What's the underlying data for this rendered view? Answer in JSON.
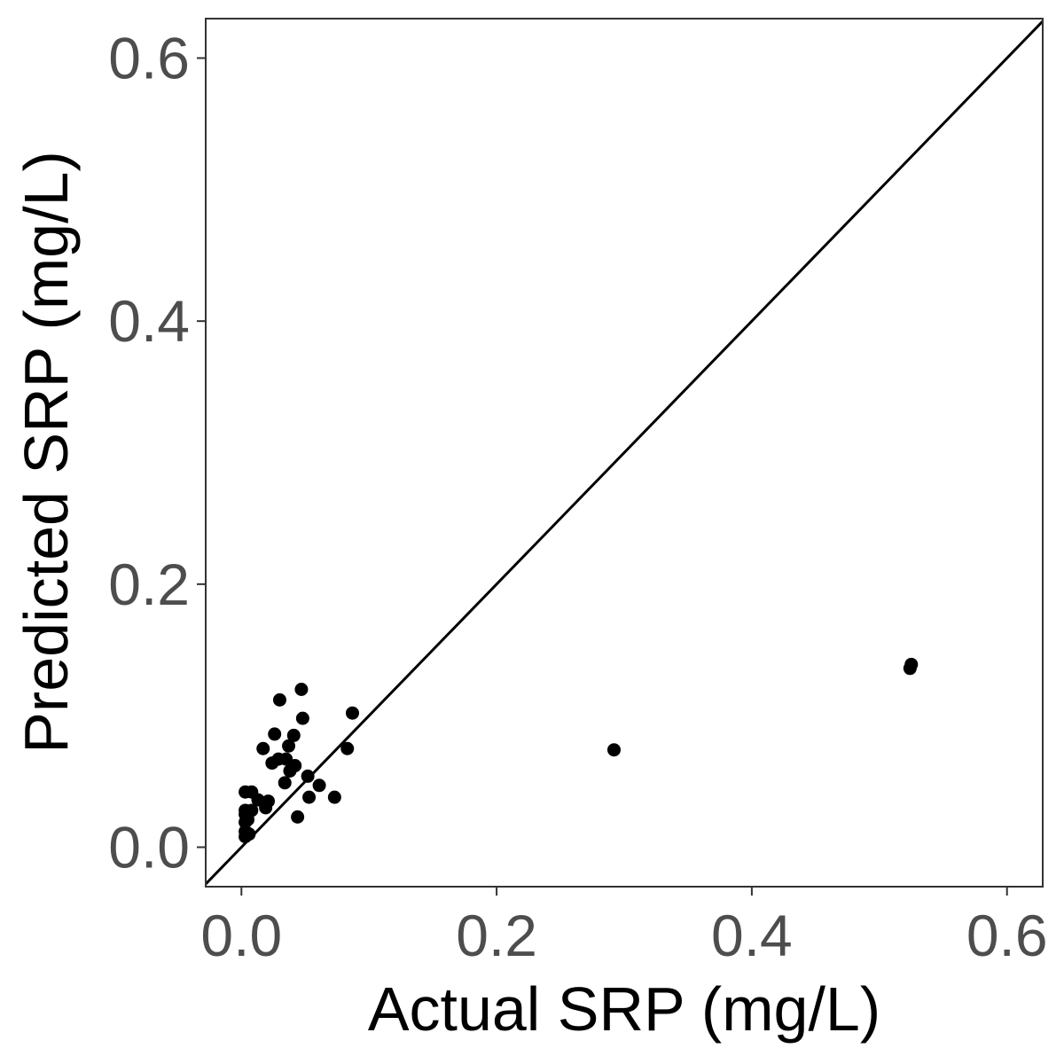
{
  "chart_data": {
    "type": "scatter",
    "title": "",
    "xlabel": "Actual SRP (mg/L)",
    "ylabel": "Predicted SRP (mg/L)",
    "xlim": [
      -0.028,
      0.628
    ],
    "ylim": [
      -0.03,
      0.63
    ],
    "xticks": [
      0.0,
      0.2,
      0.4,
      0.6
    ],
    "yticks": [
      0.0,
      0.2,
      0.4,
      0.6
    ],
    "xtick_labels": [
      "0.0",
      "0.2",
      "0.4",
      "0.6"
    ],
    "ytick_labels": [
      "0.0",
      "0.2",
      "0.4",
      "0.6"
    ],
    "grid": false,
    "reference_line": {
      "type": "identity",
      "slope": 1,
      "intercept": 0,
      "color": "#000000"
    },
    "point_color": "#000000",
    "points": [
      {
        "x": 0.003,
        "y": 0.042
      },
      {
        "x": 0.003,
        "y": 0.028
      },
      {
        "x": 0.003,
        "y": 0.025
      },
      {
        "x": 0.003,
        "y": 0.019
      },
      {
        "x": 0.003,
        "y": 0.012
      },
      {
        "x": 0.003,
        "y": 0.008
      },
      {
        "x": 0.005,
        "y": 0.021
      },
      {
        "x": 0.006,
        "y": 0.01
      },
      {
        "x": 0.008,
        "y": 0.042
      },
      {
        "x": 0.008,
        "y": 0.028
      },
      {
        "x": 0.013,
        "y": 0.036
      },
      {
        "x": 0.017,
        "y": 0.075
      },
      {
        "x": 0.019,
        "y": 0.03
      },
      {
        "x": 0.021,
        "y": 0.035
      },
      {
        "x": 0.024,
        "y": 0.064
      },
      {
        "x": 0.026,
        "y": 0.086
      },
      {
        "x": 0.029,
        "y": 0.067
      },
      {
        "x": 0.03,
        "y": 0.112
      },
      {
        "x": 0.034,
        "y": 0.049
      },
      {
        "x": 0.035,
        "y": 0.067
      },
      {
        "x": 0.037,
        "y": 0.077
      },
      {
        "x": 0.038,
        "y": 0.058
      },
      {
        "x": 0.041,
        "y": 0.085
      },
      {
        "x": 0.042,
        "y": 0.062
      },
      {
        "x": 0.044,
        "y": 0.023
      },
      {
        "x": 0.047,
        "y": 0.12
      },
      {
        "x": 0.048,
        "y": 0.098
      },
      {
        "x": 0.052,
        "y": 0.054
      },
      {
        "x": 0.053,
        "y": 0.038
      },
      {
        "x": 0.061,
        "y": 0.047
      },
      {
        "x": 0.073,
        "y": 0.038
      },
      {
        "x": 0.083,
        "y": 0.075
      },
      {
        "x": 0.087,
        "y": 0.102
      },
      {
        "x": 0.292,
        "y": 0.074
      },
      {
        "x": 0.524,
        "y": 0.136
      },
      {
        "x": 0.525,
        "y": 0.139
      }
    ]
  }
}
